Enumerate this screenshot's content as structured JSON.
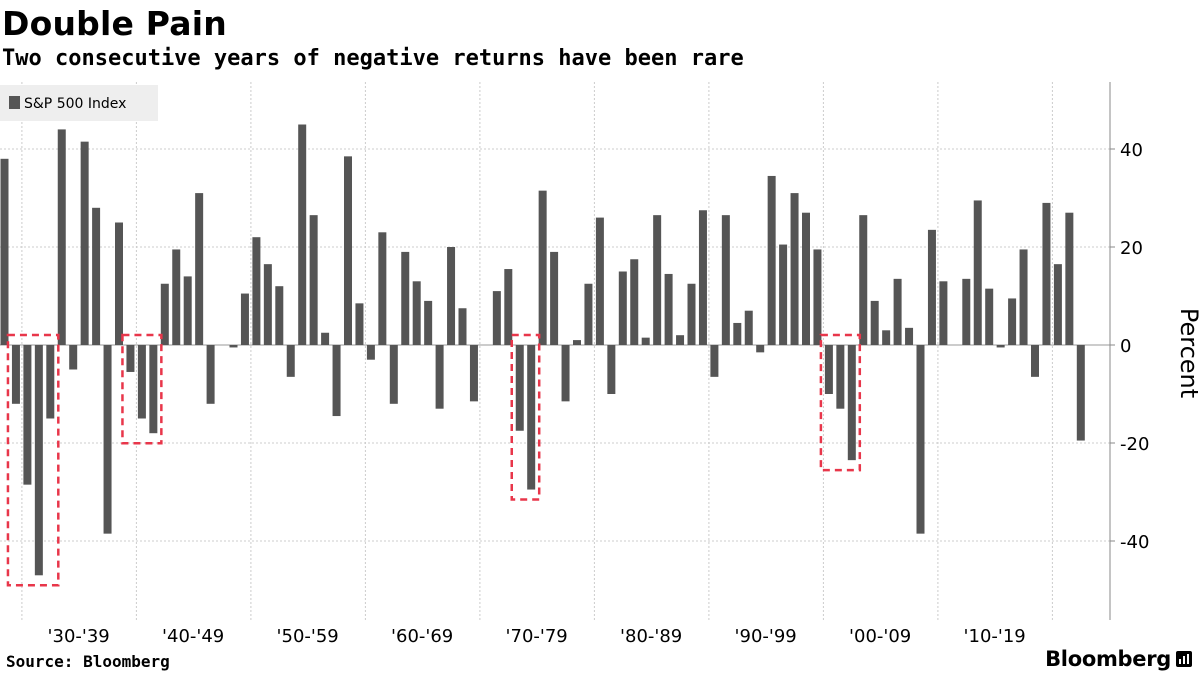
{
  "header": {
    "title": "Double Pain",
    "subtitle": "Two consecutive years of negative returns have been rare"
  },
  "footer": {
    "source": "Source: Bloomberg",
    "brand": "Bloomberg"
  },
  "colors": {
    "bar": "#555555",
    "highlight_box": "#e8364a",
    "grid": "#cccccc",
    "legend_bg": "#eeeeee"
  },
  "chart_data": {
    "type": "bar",
    "title": "Double Pain",
    "subtitle": "Two consecutive years of negative returns have been rare",
    "ylabel": "Percent",
    "ylim": [
      -52,
      54
    ],
    "yticks": [
      40,
      20,
      0,
      -20,
      -40
    ],
    "legend": {
      "label": "S&P 500 Index",
      "position": "top-left"
    },
    "decade_labels": [
      "'30-'39",
      "'40-'49",
      "'50-'59",
      "'60-'69",
      "'70-'79",
      "'80-'89",
      "'90-'99",
      "'00-'09",
      "'10-'19"
    ],
    "series": [
      {
        "name": "S&P 500 Index",
        "years": [
          1928,
          1929,
          1930,
          1931,
          1932,
          1933,
          1934,
          1935,
          1936,
          1937,
          1938,
          1939,
          1940,
          1941,
          1942,
          1943,
          1944,
          1945,
          1946,
          1947,
          1948,
          1949,
          1950,
          1951,
          1952,
          1953,
          1954,
          1955,
          1956,
          1957,
          1958,
          1959,
          1960,
          1961,
          1962,
          1963,
          1964,
          1965,
          1966,
          1967,
          1968,
          1969,
          1970,
          1971,
          1972,
          1973,
          1974,
          1975,
          1976,
          1977,
          1978,
          1979,
          1980,
          1981,
          1982,
          1983,
          1984,
          1985,
          1986,
          1987,
          1988,
          1989,
          1990,
          1991,
          1992,
          1993,
          1994,
          1995,
          1996,
          1997,
          1998,
          1999,
          2000,
          2001,
          2002,
          2003,
          2004,
          2005,
          2006,
          2007,
          2008,
          2009,
          2010,
          2011,
          2012,
          2013,
          2014,
          2015,
          2016,
          2017,
          2018,
          2019,
          2020,
          2021,
          2022
        ],
        "values": [
          38.0,
          -12.0,
          -28.5,
          -47.0,
          -15.0,
          44.0,
          -5.0,
          41.5,
          28.0,
          -38.5,
          25.0,
          -5.5,
          -15.0,
          -18.0,
          12.5,
          19.5,
          14.0,
          31.0,
          -12.0,
          0.0,
          -0.5,
          10.5,
          22.0,
          16.5,
          12.0,
          -6.5,
          45.0,
          26.5,
          2.5,
          -14.5,
          38.5,
          8.5,
          -3.0,
          23.0,
          -12.0,
          19.0,
          13.0,
          9.0,
          -13.0,
          20.0,
          7.5,
          -11.5,
          0.0,
          11.0,
          15.5,
          -17.5,
          -29.5,
          31.5,
          19.0,
          -11.5,
          1.0,
          12.5,
          26.0,
          -10.0,
          15.0,
          17.5,
          1.5,
          26.5,
          14.5,
          2.0,
          12.5,
          27.5,
          -6.5,
          26.5,
          4.5,
          7.0,
          -1.5,
          34.5,
          20.5,
          31.0,
          27.0,
          19.5,
          -10.0,
          -13.0,
          -23.5,
          26.5,
          9.0,
          3.0,
          13.5,
          3.5,
          -38.5,
          23.5,
          13.0,
          0.0,
          13.5,
          29.5,
          11.5,
          -0.5,
          9.5,
          19.5,
          -6.5,
          29.0,
          16.5,
          27.0,
          -19.5
        ]
      }
    ],
    "highlighted_periods": [
      {
        "years": [
          1929,
          1932
        ]
      },
      {
        "years": [
          1939,
          1941
        ]
      },
      {
        "years": [
          1973,
          1974
        ]
      },
      {
        "years": [
          2000,
          2002
        ]
      }
    ]
  }
}
